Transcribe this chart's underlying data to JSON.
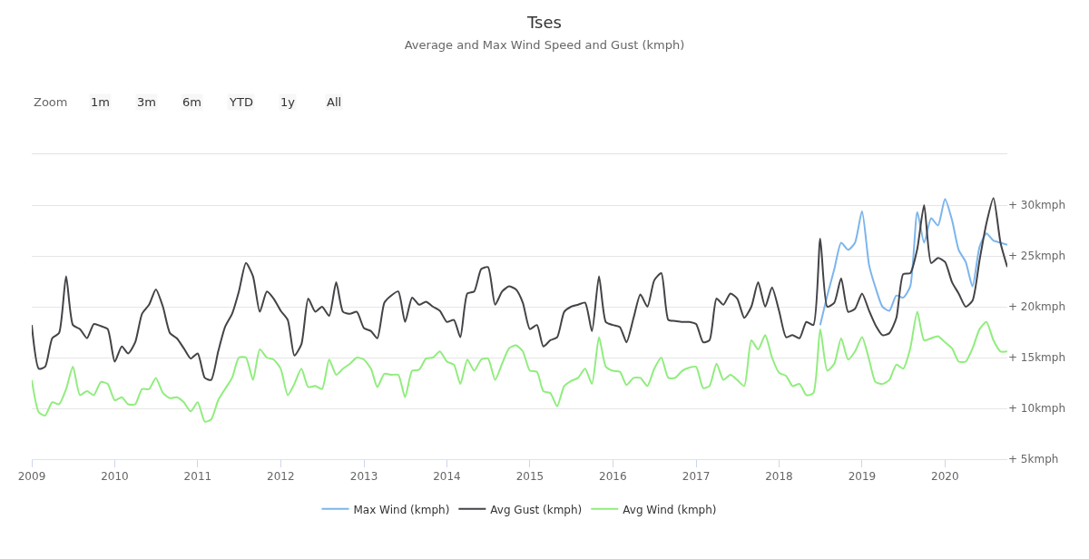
{
  "chart_data": {
    "type": "line",
    "title": "Tses",
    "subtitle": "Average and Max Wind Speed and Gust (kmph)",
    "annotations": [
      "Zoom",
      "1m",
      "3m",
      "6m",
      "YTD",
      "1y",
      "All"
    ],
    "x": [
      "2009-01",
      "2009-02",
      "2009-03",
      "2009-04",
      "2009-05",
      "2009-06",
      "2009-07",
      "2009-08",
      "2009-09",
      "2009-10",
      "2009-11",
      "2009-12",
      "2010-01",
      "2010-02",
      "2010-03",
      "2010-04",
      "2010-05",
      "2010-06",
      "2010-07",
      "2010-08",
      "2010-09",
      "2010-10",
      "2010-11",
      "2010-12",
      "2011-01",
      "2011-02",
      "2011-03",
      "2011-04",
      "2011-05",
      "2011-06",
      "2011-07",
      "2011-08",
      "2011-09",
      "2011-10",
      "2011-11",
      "2011-12",
      "2012-01",
      "2012-02",
      "2012-03",
      "2012-04",
      "2012-05",
      "2012-06",
      "2012-07",
      "2012-08",
      "2012-09",
      "2012-10",
      "2012-11",
      "2012-12",
      "2013-01",
      "2013-02",
      "2013-03",
      "2013-04",
      "2013-05",
      "2013-06",
      "2013-07",
      "2013-08",
      "2013-09",
      "2013-10",
      "2013-11",
      "2013-12",
      "2014-01",
      "2014-02",
      "2014-03",
      "2014-04",
      "2014-05",
      "2014-06",
      "2014-07",
      "2014-08",
      "2014-09",
      "2014-10",
      "2014-11",
      "2014-12",
      "2015-01",
      "2015-02",
      "2015-03",
      "2015-04",
      "2015-05",
      "2015-06",
      "2015-07",
      "2015-08",
      "2015-09",
      "2015-10",
      "2015-11",
      "2015-12",
      "2016-01",
      "2016-02",
      "2016-03",
      "2016-04",
      "2016-05",
      "2016-06",
      "2016-07",
      "2016-08",
      "2016-09",
      "2016-10",
      "2016-11",
      "2016-12",
      "2017-01",
      "2017-02",
      "2017-03",
      "2017-04",
      "2017-05",
      "2017-06",
      "2017-07",
      "2017-08",
      "2017-09",
      "2017-10",
      "2017-11",
      "2017-12",
      "2018-01",
      "2018-02",
      "2018-03",
      "2018-04",
      "2018-05",
      "2018-06",
      "2018-07",
      "2018-08",
      "2018-09",
      "2018-10",
      "2018-11",
      "2018-12",
      "2019-01",
      "2019-02",
      "2019-03",
      "2019-04",
      "2019-05",
      "2019-06",
      "2019-07",
      "2019-08",
      "2019-09",
      "2019-10",
      "2019-11",
      "2019-12",
      "2020-01",
      "2020-02",
      "2020-03",
      "2020-04",
      "2020-05",
      "2020-06",
      "2020-07",
      "2020-08",
      "2020-09",
      "2020-10"
    ],
    "series": [
      {
        "name": "Max Wind (kmph)",
        "color": "#7cb5ec",
        "values": [
          null,
          null,
          null,
          null,
          null,
          null,
          null,
          null,
          null,
          null,
          null,
          null,
          null,
          null,
          null,
          null,
          null,
          null,
          null,
          null,
          null,
          null,
          null,
          null,
          null,
          null,
          null,
          null,
          null,
          null,
          null,
          null,
          null,
          null,
          null,
          null,
          null,
          null,
          null,
          null,
          null,
          null,
          null,
          null,
          null,
          null,
          null,
          null,
          null,
          null,
          null,
          null,
          null,
          null,
          null,
          null,
          null,
          null,
          null,
          null,
          null,
          null,
          null,
          null,
          null,
          null,
          null,
          null,
          null,
          null,
          null,
          null,
          null,
          null,
          null,
          null,
          null,
          null,
          null,
          null,
          null,
          null,
          null,
          null,
          null,
          null,
          null,
          null,
          null,
          null,
          null,
          null,
          null,
          null,
          null,
          null,
          null,
          null,
          null,
          null,
          null,
          null,
          null,
          null,
          null,
          null,
          null,
          null,
          null,
          null,
          null,
          null,
          null,
          null,
          18.2,
          21.1,
          23.7,
          26.3,
          25.6,
          26.3,
          29.4,
          24.1,
          21.9,
          20.0,
          19.6,
          21.1,
          20.9,
          22.0,
          29.3,
          26.3,
          28.7,
          28.0,
          30.6,
          28.5,
          25.6,
          24.4,
          22.0,
          25.9,
          27.2,
          26.5,
          26.3,
          26.1
        ]
      },
      {
        "name": "Avg Gust (kmph)",
        "color": "#434348",
        "values": [
          18.2,
          13.9,
          14.1,
          16.9,
          17.4,
          23.0,
          18.2,
          17.8,
          16.9,
          18.3,
          18.1,
          17.8,
          14.6,
          16.1,
          15.4,
          16.5,
          19.3,
          20.2,
          21.7,
          20.0,
          17.4,
          16.9,
          15.9,
          14.9,
          15.4,
          13.0,
          12.8,
          15.6,
          18.0,
          19.3,
          21.5,
          24.3,
          23.0,
          19.5,
          21.5,
          20.8,
          19.6,
          18.7,
          15.2,
          16.3,
          20.8,
          19.5,
          20.0,
          19.1,
          22.4,
          19.5,
          19.3,
          19.5,
          17.9,
          17.6,
          16.9,
          20.4,
          21.1,
          21.5,
          18.5,
          20.9,
          20.2,
          20.5,
          20.0,
          19.6,
          18.5,
          18.7,
          17.0,
          21.3,
          21.5,
          23.7,
          23.9,
          20.2,
          21.5,
          22.0,
          21.7,
          20.4,
          17.8,
          18.2,
          16.1,
          16.7,
          17.0,
          19.5,
          20.0,
          20.2,
          20.4,
          17.6,
          23.0,
          18.5,
          18.2,
          18.0,
          16.5,
          18.9,
          21.2,
          20.0,
          22.6,
          23.3,
          18.7,
          18.6,
          18.5,
          18.5,
          18.3,
          16.5,
          16.7,
          20.8,
          20.2,
          21.3,
          20.8,
          18.9,
          20.0,
          22.4,
          20.0,
          21.9,
          19.6,
          17.0,
          17.2,
          16.9,
          18.5,
          18.2,
          26.7,
          20.0,
          20.4,
          22.8,
          19.5,
          19.8,
          21.3,
          19.6,
          18.2,
          17.2,
          17.4,
          18.9,
          23.2,
          23.3,
          25.7,
          30.0,
          24.3,
          24.8,
          24.4,
          22.4,
          21.3,
          20.0,
          20.6,
          24.6,
          28.2,
          30.7,
          26.3,
          23.9
        ]
      },
      {
        "name": "Avg Wind (kmph)",
        "color": "#90ed7d",
        "values": [
          12.8,
          9.6,
          9.3,
          10.6,
          10.4,
          11.9,
          14.1,
          11.3,
          11.7,
          11.3,
          12.6,
          12.4,
          10.8,
          11.1,
          10.4,
          10.4,
          11.9,
          11.9,
          13.0,
          11.5,
          11.0,
          11.1,
          10.6,
          9.7,
          10.6,
          8.7,
          8.9,
          10.8,
          11.9,
          13.0,
          15.0,
          15.0,
          12.8,
          15.8,
          15.0,
          14.8,
          13.9,
          11.3,
          12.4,
          13.9,
          12.1,
          12.2,
          11.9,
          14.8,
          13.3,
          13.9,
          14.4,
          15.0,
          14.8,
          13.9,
          12.1,
          13.4,
          13.3,
          13.3,
          11.1,
          13.7,
          13.8,
          14.9,
          15.0,
          15.6,
          14.6,
          14.3,
          12.4,
          14.8,
          13.7,
          14.8,
          14.9,
          12.8,
          14.4,
          15.9,
          16.2,
          15.6,
          13.7,
          13.6,
          11.7,
          11.5,
          10.2,
          12.2,
          12.7,
          13.0,
          13.9,
          12.4,
          17.0,
          14.1,
          13.7,
          13.6,
          12.3,
          13.0,
          13.0,
          12.2,
          13.9,
          15.0,
          13.0,
          13.0,
          13.7,
          14.0,
          14.1,
          12.0,
          12.2,
          14.4,
          12.8,
          13.3,
          12.8,
          12.2,
          16.7,
          15.8,
          17.2,
          15.0,
          13.5,
          13.2,
          12.2,
          12.4,
          11.3,
          11.5,
          17.8,
          13.7,
          14.4,
          16.9,
          14.8,
          15.6,
          17.0,
          14.8,
          12.6,
          12.4,
          12.8,
          14.3,
          13.9,
          15.9,
          19.5,
          16.7,
          16.9,
          17.1,
          16.5,
          15.9,
          14.6,
          14.6,
          15.9,
          17.8,
          18.5,
          16.7,
          15.6,
          15.6
        ]
      }
    ],
    "xlim": [
      "2009-01",
      "2020-10"
    ],
    "xticks": [
      "2009",
      "2010",
      "2011",
      "2012",
      "2013",
      "2014",
      "2015",
      "2016",
      "2017",
      "2018",
      "2019",
      "2020"
    ],
    "ylim": [
      5,
      35
    ],
    "yticks": [
      {
        "value": 5,
        "label": "+ 5kmph"
      },
      {
        "value": 10,
        "label": "+ 10kmph"
      },
      {
        "value": 15,
        "label": "+ 15kmph"
      },
      {
        "value": 20,
        "label": "+ 20kmph"
      },
      {
        "value": 25,
        "label": "+ 25kmph"
      },
      {
        "value": 30,
        "label": "+ 30kmph"
      },
      {
        "value": 35,
        "label": null
      }
    ],
    "grid": "y",
    "legend": "bottom",
    "marker": "none",
    "line_style": "solid"
  }
}
